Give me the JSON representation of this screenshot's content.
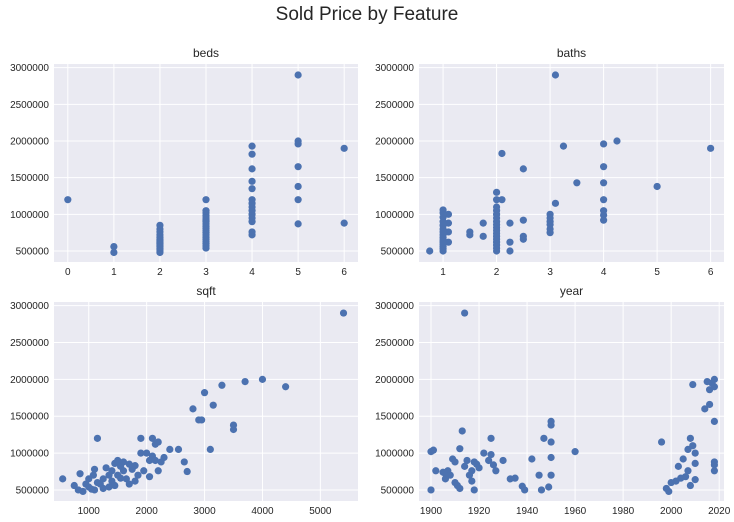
{
  "figure_title": "Sold Price by Feature",
  "colors": {
    "background": "#EAEAF2",
    "grid": "#FFFFFF",
    "marker": "#4C72B0",
    "text": "#262626"
  },
  "chart_data": [
    {
      "type": "scatter",
      "title": "beds",
      "grid": true,
      "xlim": [
        -0.3,
        6.3
      ],
      "ylim": [
        350000,
        3050000
      ],
      "xticks": [
        0,
        1,
        2,
        3,
        4,
        5,
        6
      ],
      "yticks": [
        500000,
        1000000,
        1500000,
        2000000,
        2500000,
        3000000
      ],
      "points": [
        [
          0,
          1200000
        ],
        [
          1,
          560000
        ],
        [
          1,
          480000
        ],
        [
          2,
          850000
        ],
        [
          2,
          800000
        ],
        [
          2,
          760000
        ],
        [
          2,
          720000
        ],
        [
          2,
          690000
        ],
        [
          2,
          660000
        ],
        [
          2,
          640000
        ],
        [
          2,
          620000
        ],
        [
          2,
          600000
        ],
        [
          2,
          580000
        ],
        [
          2,
          560000
        ],
        [
          2,
          540000
        ],
        [
          2,
          520000
        ],
        [
          2,
          500000
        ],
        [
          2,
          480000
        ],
        [
          3,
          1200000
        ],
        [
          3,
          1050000
        ],
        [
          3,
          1020000
        ],
        [
          3,
          980000
        ],
        [
          3,
          950000
        ],
        [
          3,
          920000
        ],
        [
          3,
          900000
        ],
        [
          3,
          870000
        ],
        [
          3,
          840000
        ],
        [
          3,
          810000
        ],
        [
          3,
          780000
        ],
        [
          3,
          750000
        ],
        [
          3,
          720000
        ],
        [
          3,
          690000
        ],
        [
          3,
          660000
        ],
        [
          3,
          630000
        ],
        [
          3,
          600000
        ],
        [
          3,
          570000
        ],
        [
          3,
          540000
        ],
        [
          4,
          1930000
        ],
        [
          4,
          1820000
        ],
        [
          4,
          1620000
        ],
        [
          4,
          1450000
        ],
        [
          4,
          1350000
        ],
        [
          4,
          1200000
        ],
        [
          4,
          1150000
        ],
        [
          4,
          1100000
        ],
        [
          4,
          1050000
        ],
        [
          4,
          1000000
        ],
        [
          4,
          950000
        ],
        [
          4,
          900000
        ],
        [
          4,
          760000
        ],
        [
          4,
          720000
        ],
        [
          5,
          2900000
        ],
        [
          5,
          2000000
        ],
        [
          5,
          1960000
        ],
        [
          5,
          1650000
        ],
        [
          5,
          1380000
        ],
        [
          5,
          1200000
        ],
        [
          5,
          870000
        ],
        [
          6,
          1900000
        ],
        [
          6,
          880000
        ]
      ]
    },
    {
      "type": "scatter",
      "title": "baths",
      "grid": true,
      "xlim": [
        0.55,
        6.25
      ],
      "ylim": [
        350000,
        3050000
      ],
      "xticks": [
        1,
        2,
        3,
        4,
        5,
        6
      ],
      "yticks": [
        500000,
        1000000,
        1500000,
        2000000,
        2500000,
        3000000
      ],
      "points": [
        [
          0.75,
          500000
        ],
        [
          1,
          1060000
        ],
        [
          1,
          1020000
        ],
        [
          1,
          960000
        ],
        [
          1,
          900000
        ],
        [
          1,
          850000
        ],
        [
          1,
          800000
        ],
        [
          1,
          760000
        ],
        [
          1,
          720000
        ],
        [
          1,
          680000
        ],
        [
          1,
          650000
        ],
        [
          1,
          620000
        ],
        [
          1,
          590000
        ],
        [
          1,
          560000
        ],
        [
          1,
          530000
        ],
        [
          1,
          500000
        ],
        [
          1.1,
          1000000
        ],
        [
          1.1,
          880000
        ],
        [
          1.1,
          760000
        ],
        [
          1.1,
          620000
        ],
        [
          1.5,
          760000
        ],
        [
          1.5,
          720000
        ],
        [
          1.75,
          880000
        ],
        [
          1.75,
          700000
        ],
        [
          2,
          1300000
        ],
        [
          2,
          1200000
        ],
        [
          2,
          1100000
        ],
        [
          2,
          1050000
        ],
        [
          2,
          1000000
        ],
        [
          2,
          950000
        ],
        [
          2,
          900000
        ],
        [
          2,
          860000
        ],
        [
          2,
          820000
        ],
        [
          2,
          780000
        ],
        [
          2,
          740000
        ],
        [
          2,
          700000
        ],
        [
          2,
          660000
        ],
        [
          2,
          620000
        ],
        [
          2,
          580000
        ],
        [
          2,
          540000
        ],
        [
          2,
          500000
        ],
        [
          2.1,
          1830000
        ],
        [
          2.1,
          1200000
        ],
        [
          2.25,
          880000
        ],
        [
          2.25,
          620000
        ],
        [
          2.25,
          500000
        ],
        [
          2.5,
          1620000
        ],
        [
          2.5,
          920000
        ],
        [
          2.5,
          700000
        ],
        [
          2.5,
          660000
        ],
        [
          3,
          1000000
        ],
        [
          3,
          950000
        ],
        [
          3,
          900000
        ],
        [
          3,
          860000
        ],
        [
          3,
          800000
        ],
        [
          3,
          750000
        ],
        [
          3.1,
          2900000
        ],
        [
          3.1,
          1150000
        ],
        [
          3.25,
          1930000
        ],
        [
          3.5,
          1430000
        ],
        [
          4,
          1960000
        ],
        [
          4,
          1650000
        ],
        [
          4,
          1430000
        ],
        [
          4,
          1200000
        ],
        [
          4,
          1050000
        ],
        [
          4,
          990000
        ],
        [
          4,
          920000
        ],
        [
          4.25,
          2000000
        ],
        [
          5,
          1380000
        ],
        [
          6,
          1900000
        ]
      ]
    },
    {
      "type": "scatter",
      "title": "sqft",
      "grid": true,
      "xlim": [
        400,
        5650
      ],
      "ylim": [
        350000,
        3050000
      ],
      "xticks": [
        1000,
        2000,
        3000,
        4000,
        5000
      ],
      "yticks": [
        500000,
        1000000,
        1500000,
        2000000,
        2500000,
        3000000
      ],
      "points": [
        [
          550,
          650000
        ],
        [
          750,
          560000
        ],
        [
          820,
          500000
        ],
        [
          850,
          720000
        ],
        [
          900,
          480000
        ],
        [
          950,
          580000
        ],
        [
          1000,
          540000
        ],
        [
          1000,
          650000
        ],
        [
          1050,
          510000
        ],
        [
          1080,
          700000
        ],
        [
          1100,
          780000
        ],
        [
          1100,
          500000
        ],
        [
          1150,
          1200000
        ],
        [
          1150,
          600000
        ],
        [
          1200,
          580000
        ],
        [
          1250,
          520000
        ],
        [
          1250,
          650000
        ],
        [
          1300,
          800000
        ],
        [
          1350,
          700000
        ],
        [
          1350,
          540000
        ],
        [
          1400,
          760000
        ],
        [
          1400,
          620000
        ],
        [
          1450,
          860000
        ],
        [
          1450,
          560000
        ],
        [
          1500,
          900000
        ],
        [
          1500,
          700000
        ],
        [
          1550,
          820000
        ],
        [
          1550,
          660000
        ],
        [
          1600,
          880000
        ],
        [
          1600,
          760000
        ],
        [
          1650,
          650000
        ],
        [
          1700,
          850000
        ],
        [
          1700,
          580000
        ],
        [
          1750,
          780000
        ],
        [
          1800,
          830000
        ],
        [
          1800,
          620000
        ],
        [
          1850,
          700000
        ],
        [
          1900,
          1200000
        ],
        [
          1900,
          1000000
        ],
        [
          1950,
          760000
        ],
        [
          2000,
          1000000
        ],
        [
          2050,
          900000
        ],
        [
          2050,
          680000
        ],
        [
          2100,
          1200000
        ],
        [
          2100,
          960000
        ],
        [
          2150,
          1120000
        ],
        [
          2150,
          900000
        ],
        [
          2200,
          760000
        ],
        [
          2200,
          1150000
        ],
        [
          2250,
          880000
        ],
        [
          2300,
          940000
        ],
        [
          2400,
          1050000
        ],
        [
          2550,
          1050000
        ],
        [
          2650,
          880000
        ],
        [
          2700,
          750000
        ],
        [
          2800,
          1600000
        ],
        [
          2900,
          1450000
        ],
        [
          2950,
          1450000
        ],
        [
          3000,
          1820000
        ],
        [
          3100,
          1050000
        ],
        [
          3150,
          1650000
        ],
        [
          3300,
          1920000
        ],
        [
          3500,
          1380000
        ],
        [
          3500,
          1320000
        ],
        [
          3700,
          1970000
        ],
        [
          4000,
          2000000
        ],
        [
          4400,
          1900000
        ],
        [
          5400,
          2900000
        ]
      ]
    },
    {
      "type": "scatter",
      "title": "year",
      "grid": true,
      "xlim": [
        1895,
        2022
      ],
      "ylim": [
        350000,
        3050000
      ],
      "xticks": [
        1900,
        1920,
        1940,
        1960,
        1980,
        2000,
        2020
      ],
      "yticks": [
        500000,
        1000000,
        1500000,
        2000000,
        2500000,
        3000000
      ],
      "points": [
        [
          1900,
          1020000
        ],
        [
          1900,
          500000
        ],
        [
          1901,
          1040000
        ],
        [
          1902,
          760000
        ],
        [
          1905,
          740000
        ],
        [
          1906,
          650000
        ],
        [
          1906,
          720000
        ],
        [
          1907,
          760000
        ],
        [
          1908,
          700000
        ],
        [
          1909,
          920000
        ],
        [
          1910,
          880000
        ],
        [
          1910,
          600000
        ],
        [
          1911,
          560000
        ],
        [
          1912,
          1060000
        ],
        [
          1912,
          520000
        ],
        [
          1913,
          1300000
        ],
        [
          1914,
          2900000
        ],
        [
          1914,
          820000
        ],
        [
          1915,
          900000
        ],
        [
          1916,
          700000
        ],
        [
          1917,
          760000
        ],
        [
          1917,
          620000
        ],
        [
          1918,
          880000
        ],
        [
          1918,
          500000
        ],
        [
          1919,
          850000
        ],
        [
          1920,
          800000
        ],
        [
          1922,
          1000000
        ],
        [
          1924,
          900000
        ],
        [
          1925,
          1200000
        ],
        [
          1925,
          980000
        ],
        [
          1926,
          840000
        ],
        [
          1927,
          760000
        ],
        [
          1930,
          900000
        ],
        [
          1933,
          650000
        ],
        [
          1935,
          660000
        ],
        [
          1938,
          550000
        ],
        [
          1939,
          500000
        ],
        [
          1942,
          920000
        ],
        [
          1945,
          700000
        ],
        [
          1946,
          500000
        ],
        [
          1947,
          1200000
        ],
        [
          1949,
          540000
        ],
        [
          1950,
          1430000
        ],
        [
          1950,
          1380000
        ],
        [
          1950,
          1150000
        ],
        [
          1950,
          940000
        ],
        [
          1950,
          700000
        ],
        [
          1960,
          1020000
        ],
        [
          1996,
          1150000
        ],
        [
          1998,
          520000
        ],
        [
          1999,
          480000
        ],
        [
          2000,
          600000
        ],
        [
          2002,
          620000
        ],
        [
          2003,
          820000
        ],
        [
          2004,
          660000
        ],
        [
          2005,
          920000
        ],
        [
          2006,
          680000
        ],
        [
          2007,
          1050000
        ],
        [
          2007,
          760000
        ],
        [
          2008,
          1200000
        ],
        [
          2008,
          560000
        ],
        [
          2009,
          1930000
        ],
        [
          2009,
          1100000
        ],
        [
          2010,
          1000000
        ],
        [
          2010,
          860000
        ],
        [
          2010,
          640000
        ],
        [
          2014,
          1600000
        ],
        [
          2015,
          1970000
        ],
        [
          2016,
          1660000
        ],
        [
          2016,
          1860000
        ],
        [
          2017,
          1950000
        ],
        [
          2018,
          2000000
        ],
        [
          2018,
          1900000
        ],
        [
          2018,
          1430000
        ],
        [
          2018,
          880000
        ],
        [
          2018,
          840000
        ],
        [
          2018,
          760000
        ]
      ]
    }
  ]
}
